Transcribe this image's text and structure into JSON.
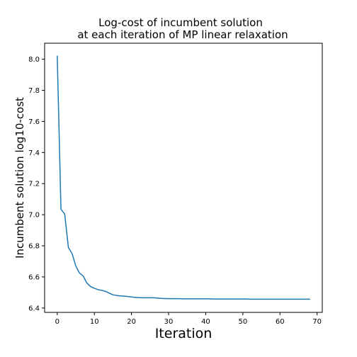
{
  "chart_data": {
    "type": "line",
    "title": [
      "Log-cost of incumbent solution",
      "at each iteration of MP linear relaxation"
    ],
    "xlabel": "Iteration",
    "ylabel": "Incumbent solution log10-cost",
    "xlim": [
      -3.4,
      71.4
    ],
    "ylim": [
      6.372,
      8.103
    ],
    "xticks": [
      0,
      10,
      20,
      30,
      40,
      50,
      60,
      70
    ],
    "yticks": [
      6.4,
      6.6,
      6.8,
      7.0,
      7.2,
      7.4,
      7.6,
      7.8,
      8.0
    ],
    "ytick_labels": [
      "6.4",
      "6.6",
      "6.8",
      "7.0",
      "7.2",
      "7.4",
      "7.6",
      "7.8",
      "8.0"
    ],
    "grid": false,
    "line_color": "#1f77b4",
    "series": [
      {
        "x": [
          0,
          1,
          2,
          3,
          4,
          5,
          6,
          7,
          8,
          9,
          10,
          11,
          12,
          13,
          14,
          15,
          16,
          17,
          18,
          19,
          20,
          21,
          22,
          23,
          24,
          25,
          26,
          27,
          28,
          29,
          30,
          31,
          32,
          33,
          34,
          35,
          36,
          37,
          38,
          39,
          40,
          41,
          42,
          43,
          44,
          45,
          46,
          47,
          48,
          49,
          50,
          51,
          52,
          53,
          54,
          55,
          56,
          57,
          58,
          59,
          60,
          61,
          62,
          63,
          64,
          65,
          66,
          67,
          68
        ],
        "y": [
          8.02,
          7.035,
          7.005,
          6.79,
          6.75,
          6.67,
          6.625,
          6.605,
          6.56,
          6.538,
          6.527,
          6.518,
          6.514,
          6.507,
          6.496,
          6.485,
          6.481,
          6.478,
          6.476,
          6.474,
          6.471,
          6.468,
          6.467,
          6.466,
          6.466,
          6.466,
          6.466,
          6.464,
          6.462,
          6.461,
          6.46,
          6.46,
          6.46,
          6.46,
          6.459,
          6.459,
          6.459,
          6.459,
          6.459,
          6.459,
          6.459,
          6.459,
          6.458,
          6.458,
          6.458,
          6.458,
          6.458,
          6.458,
          6.458,
          6.458,
          6.458,
          6.458,
          6.457,
          6.457,
          6.457,
          6.457,
          6.457,
          6.457,
          6.457,
          6.457,
          6.457,
          6.457,
          6.457,
          6.457,
          6.457,
          6.457,
          6.457,
          6.457,
          6.457
        ]
      }
    ]
  }
}
